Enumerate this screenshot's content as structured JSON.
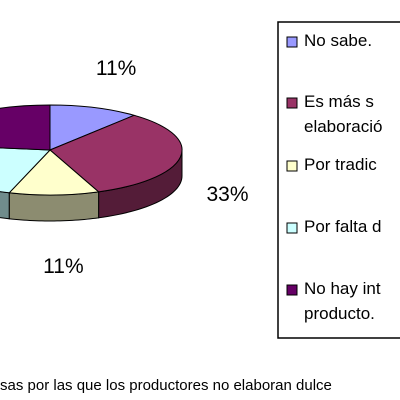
{
  "chart_data": {
    "type": "pie",
    "title": "sas por las que los productores no elaboran dulce",
    "series": [
      {
        "name": "No sabe.",
        "color": "#9999ff"
      },
      {
        "name": "Es más s\nelaboració",
        "color": "#993366"
      },
      {
        "name": "Por tradic",
        "color": "#ffffcc"
      },
      {
        "name": "Por falta d",
        "color": "#ccffff"
      },
      {
        "name": "No hay int\nproducto.",
        "color": "#660066"
      }
    ],
    "values": [
      11,
      33,
      11,
      22,
      23
    ],
    "value_labels": [
      "11%",
      "33%",
      "11%",
      null,
      null
    ]
  }
}
